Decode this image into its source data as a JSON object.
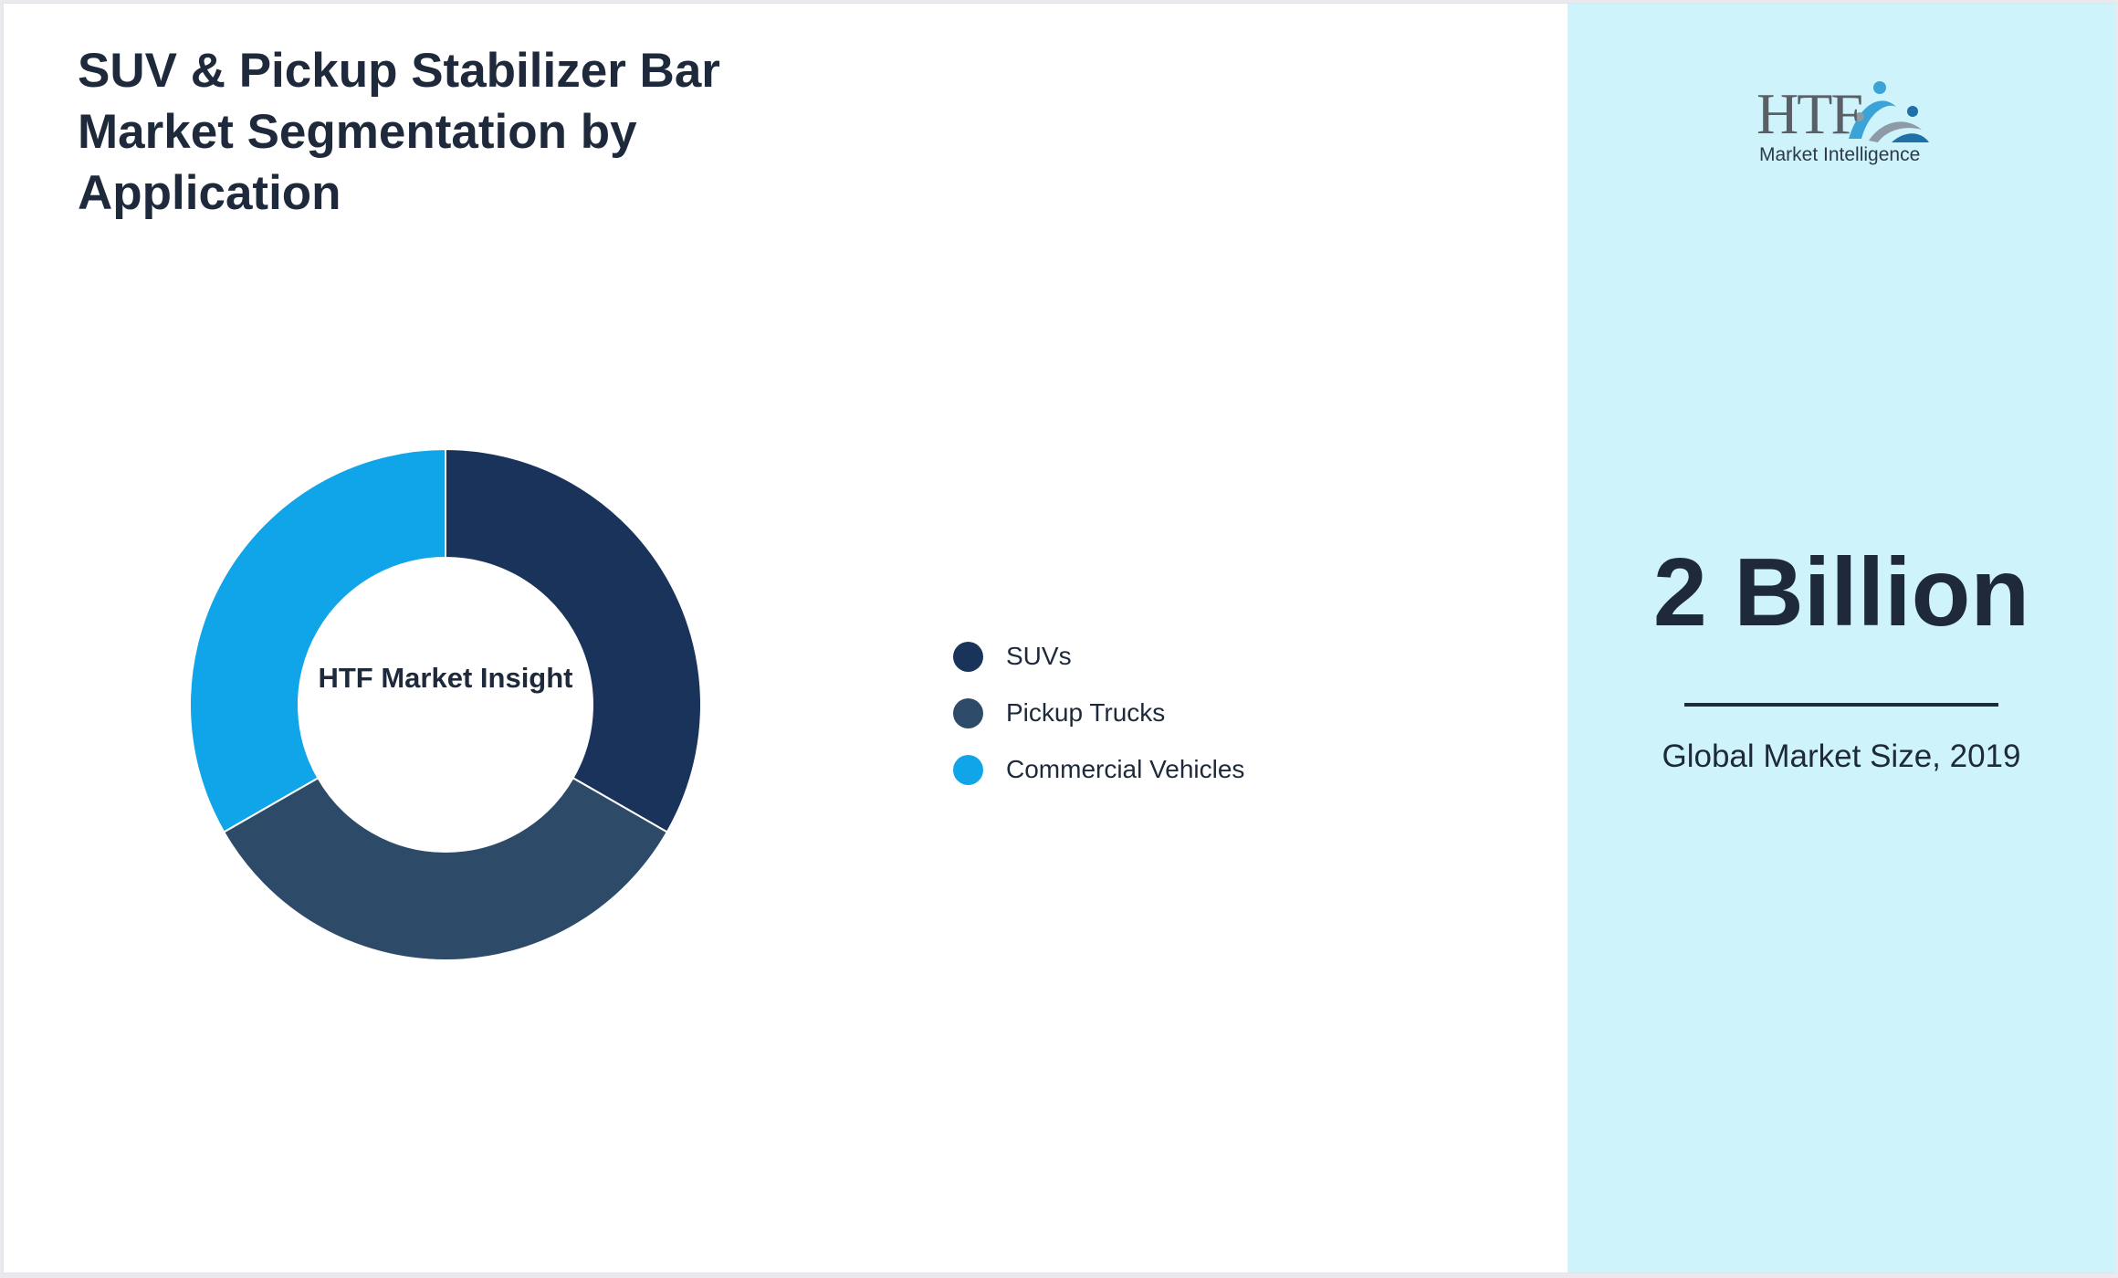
{
  "title": "SUV & Pickup Stabilizer Bar Market Segmentation by Application",
  "chart_data": {
    "type": "pie",
    "style": "donut",
    "center_label": "HTF Market Insight",
    "categories": [
      "SUVs",
      "Pickup Trucks",
      "Commercial Vehicles"
    ],
    "values": [
      33.3,
      33.4,
      33.3
    ],
    "colors": [
      "#1a335a",
      "#2d4b68",
      "#10a5e8"
    ],
    "legend_position": "right"
  },
  "brand": {
    "logo_text": "HTF",
    "logo_subtext": "Market Intelligence"
  },
  "stat": {
    "value": "2 Billion",
    "caption": "Global Market Size, 2019"
  },
  "colors": {
    "side_panel": "#cef3fa",
    "text": "#1e293b"
  }
}
